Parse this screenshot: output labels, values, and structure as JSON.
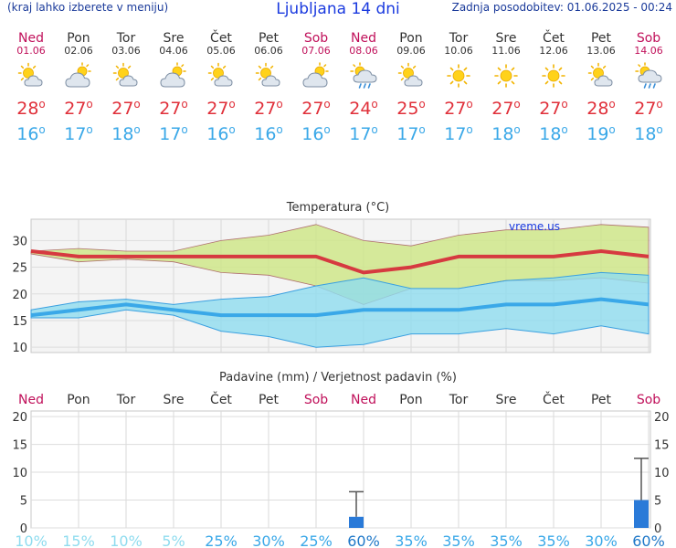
{
  "header": {
    "menu_hint": "(kraj lahko izberete v meniju)",
    "title": "Ljubljana 14 dni",
    "last_update": "Zadnja posodobitev: 01.06.2025 - 00:24"
  },
  "days": [
    {
      "name": "Ned",
      "date": "01.06",
      "weekend": true,
      "icon": "sun-cloud-icon",
      "hi": "28",
      "lo": "16"
    },
    {
      "name": "Pon",
      "date": "02.06",
      "weekend": false,
      "icon": "cloud-sun-icon",
      "hi": "27",
      "lo": "17"
    },
    {
      "name": "Tor",
      "date": "03.06",
      "weekend": false,
      "icon": "sun-cloud-icon",
      "hi": "27",
      "lo": "18"
    },
    {
      "name": "Sre",
      "date": "04.06",
      "weekend": false,
      "icon": "cloud-sun-icon",
      "hi": "27",
      "lo": "17"
    },
    {
      "name": "Čet",
      "date": "05.06",
      "weekend": false,
      "icon": "sun-cloud-icon",
      "hi": "27",
      "lo": "16"
    },
    {
      "name": "Pet",
      "date": "06.06",
      "weekend": false,
      "icon": "sun-cloud-icon",
      "hi": "27",
      "lo": "16"
    },
    {
      "name": "Sob",
      "date": "07.06",
      "weekend": true,
      "icon": "cloud-sun-icon",
      "hi": "27",
      "lo": "16"
    },
    {
      "name": "Ned",
      "date": "08.06",
      "weekend": true,
      "icon": "sun-rain-cloud-icon",
      "hi": "24",
      "lo": "17"
    },
    {
      "name": "Pon",
      "date": "09.06",
      "weekend": false,
      "icon": "sun-cloud-icon",
      "hi": "25",
      "lo": "17"
    },
    {
      "name": "Tor",
      "date": "10.06",
      "weekend": false,
      "icon": "sun-icon",
      "hi": "27",
      "lo": "17"
    },
    {
      "name": "Sre",
      "date": "11.06",
      "weekend": false,
      "icon": "sun-icon",
      "hi": "27",
      "lo": "18"
    },
    {
      "name": "Čet",
      "date": "12.06",
      "weekend": false,
      "icon": "sun-icon",
      "hi": "27",
      "lo": "18"
    },
    {
      "name": "Pet",
      "date": "13.06",
      "weekend": false,
      "icon": "sun-cloud-icon",
      "hi": "28",
      "lo": "19"
    },
    {
      "name": "Sob",
      "date": "14.06",
      "weekend": true,
      "icon": "sun-rain-cloud-icon",
      "hi": "27",
      "lo": "18"
    }
  ],
  "degree_symbol": "o",
  "colors": {
    "hi": "#e0303a",
    "lo": "#3aa8e8",
    "weekend": "#c0105a",
    "band_hi": "#cfe68a",
    "band_lo": "#8fdcef",
    "bar": "#2a7ad8"
  },
  "chart_data": [
    {
      "type": "line",
      "title": "Temperatura (°C)",
      "watermark": "vreme.us",
      "ylim": [
        9,
        34
      ],
      "yticks": [
        "10",
        "15",
        "20",
        "25",
        "30"
      ],
      "x": [
        "01.06",
        "02.06",
        "03.06",
        "04.06",
        "05.06",
        "06.06",
        "07.06",
        "08.06",
        "09.06",
        "10.06",
        "11.06",
        "12.06",
        "13.06",
        "14.06"
      ],
      "series": [
        {
          "role": "max",
          "values": [
            28,
            27,
            27,
            27,
            27,
            27,
            27,
            24,
            25,
            27,
            27,
            27,
            28,
            27
          ]
        },
        {
          "role": "min",
          "values": [
            16,
            17,
            18,
            17,
            16,
            16,
            16,
            17,
            17,
            17,
            18,
            18,
            19,
            18
          ]
        },
        {
          "role": "max_upper",
          "values": [
            28,
            28.5,
            28,
            28,
            30,
            31,
            33,
            30,
            29,
            31,
            32,
            32,
            33,
            32.5
          ]
        },
        {
          "role": "max_lower",
          "values": [
            27.5,
            26,
            26.5,
            26,
            24,
            23.5,
            21.5,
            18,
            21,
            21,
            22.5,
            22.5,
            23,
            22
          ]
        },
        {
          "role": "min_upper",
          "values": [
            17,
            18.5,
            19,
            18,
            19,
            19.5,
            21.5,
            23,
            21,
            21,
            22.5,
            23,
            24,
            23.5
          ]
        },
        {
          "role": "min_lower",
          "values": [
            15.5,
            15.5,
            17,
            16,
            13,
            12,
            10,
            10.5,
            12.5,
            12.5,
            13.5,
            12.5,
            14,
            12.5
          ]
        }
      ]
    },
    {
      "type": "bar",
      "title": "Padavine (mm) / Verjetnost padavin (%)",
      "ylim": [
        0,
        21
      ],
      "yticks": [
        "0",
        "5",
        "10",
        "15",
        "20"
      ],
      "categories": [
        "Ned",
        "Pon",
        "Tor",
        "Sre",
        "Čet",
        "Pet",
        "Sob",
        "Ned",
        "Pon",
        "Tor",
        "Sre",
        "Čet",
        "Pet",
        "Sob"
      ],
      "values": [
        0,
        0,
        0,
        0,
        0,
        0,
        0,
        2,
        0,
        0,
        0,
        0,
        0,
        5
      ],
      "error_max": [
        0,
        0,
        0,
        0,
        0,
        0,
        0,
        6.5,
        0,
        0,
        0,
        0,
        0,
        12.5
      ],
      "probability": [
        "10%",
        "15%",
        "10%",
        "5%",
        "25%",
        "30%",
        "25%",
        "60%",
        "35%",
        "35%",
        "35%",
        "35%",
        "30%",
        "60%"
      ]
    }
  ]
}
